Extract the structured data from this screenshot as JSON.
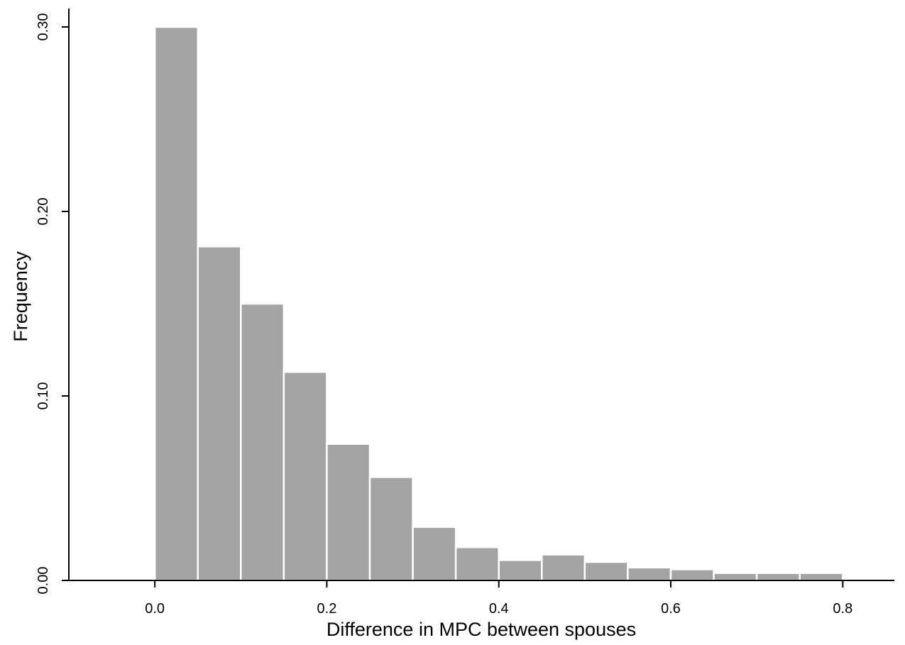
{
  "chart_data": {
    "type": "bar",
    "title": "",
    "xlabel": "Difference in MPC between spouses",
    "ylabel": "Frequency",
    "xlim": [
      -0.1,
      0.86
    ],
    "ylim": [
      0,
      0.31
    ],
    "x_ticks": [
      "0.0",
      "0.2",
      "0.4",
      "0.6",
      "0.8"
    ],
    "y_ticks": [
      "0.00",
      "0.10",
      "0.20",
      "0.30"
    ],
    "grid": false,
    "bar_color": "#a3a3a3",
    "bins": [
      {
        "start": 0.0,
        "end": 0.05,
        "value": 0.3
      },
      {
        "start": 0.05,
        "end": 0.1,
        "value": 0.181
      },
      {
        "start": 0.1,
        "end": 0.15,
        "value": 0.15
      },
      {
        "start": 0.15,
        "end": 0.2,
        "value": 0.113
      },
      {
        "start": 0.2,
        "end": 0.25,
        "value": 0.074
      },
      {
        "start": 0.25,
        "end": 0.3,
        "value": 0.056
      },
      {
        "start": 0.3,
        "end": 0.35,
        "value": 0.029
      },
      {
        "start": 0.35,
        "end": 0.4,
        "value": 0.018
      },
      {
        "start": 0.4,
        "end": 0.45,
        "value": 0.011
      },
      {
        "start": 0.45,
        "end": 0.5,
        "value": 0.014
      },
      {
        "start": 0.5,
        "end": 0.55,
        "value": 0.01
      },
      {
        "start": 0.55,
        "end": 0.6,
        "value": 0.007
      },
      {
        "start": 0.6,
        "end": 0.65,
        "value": 0.006
      },
      {
        "start": 0.65,
        "end": 0.7,
        "value": 0.004
      },
      {
        "start": 0.7,
        "end": 0.75,
        "value": 0.004
      },
      {
        "start": 0.75,
        "end": 0.8,
        "value": 0.004
      }
    ]
  }
}
